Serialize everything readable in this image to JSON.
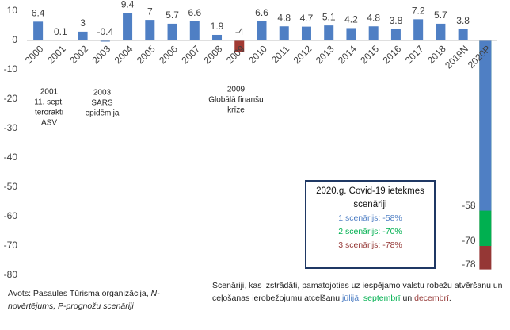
{
  "chart_data": {
    "type": "bar",
    "categories": [
      "2000",
      "2001",
      "2002",
      "2003",
      "2004",
      "2005",
      "2006",
      "2007",
      "2008",
      "2009",
      "2010",
      "2011",
      "2012",
      "2013",
      "2014",
      "2015",
      "2016",
      "2017",
      "2018",
      "2019N",
      "2020P"
    ],
    "series": [
      {
        "values": [
          6.4,
          0.1,
          3,
          -0.4,
          9.4,
          7,
          5.7,
          6.6,
          1.9,
          -4,
          6.6,
          4.8,
          4.7,
          5.1,
          4.2,
          4.8,
          3.8,
          7.2,
          5.7,
          3.8,
          null
        ],
        "colors": [
          "#4f7fc4",
          "#4f7fc4",
          "#4f7fc4",
          "#4f7fc4",
          "#4f7fc4",
          "#4f7fc4",
          "#4f7fc4",
          "#4f7fc4",
          "#4f7fc4",
          "#a23a33",
          "#4f7fc4",
          "#4f7fc4",
          "#4f7fc4",
          "#4f7fc4",
          "#4f7fc4",
          "#4f7fc4",
          "#4f7fc4",
          "#4f7fc4",
          "#4f7fc4",
          "#4f7fc4",
          "#4f7fc4"
        ]
      },
      {
        "name": "3.scenārijs: -78%",
        "color": "#953735",
        "values": [
          null,
          null,
          null,
          null,
          null,
          null,
          null,
          null,
          null,
          null,
          null,
          null,
          null,
          null,
          null,
          null,
          null,
          null,
          null,
          null,
          -78
        ]
      },
      {
        "name": "2.scenārijs: -70%",
        "color": "#00b050",
        "values": [
          null,
          null,
          null,
          null,
          null,
          null,
          null,
          null,
          null,
          null,
          null,
          null,
          null,
          null,
          null,
          null,
          null,
          null,
          null,
          null,
          -70
        ]
      },
      {
        "name": "1.scenārijs: -58%",
        "color": "#4f7fc4",
        "values": [
          null,
          null,
          null,
          null,
          null,
          null,
          null,
          null,
          null,
          null,
          null,
          null,
          null,
          null,
          null,
          null,
          null,
          null,
          null,
          null,
          -58
        ]
      }
    ],
    "legend_title": "2020.g. Covid-19 ietekmes scenāriji",
    "ylim": [
      -80,
      10
    ],
    "yticks": [
      -80,
      -70,
      -60,
      -50,
      -40,
      -30,
      -20,
      -10,
      0,
      10
    ],
    "grid": false,
    "annotations": [
      [
        "2001",
        "11. sept.",
        "terorakti",
        "ASV"
      ],
      [
        "2003",
        "SARS",
        "epidēmija"
      ],
      [
        "2009",
        "Globālā finanšu",
        "krīze"
      ]
    ]
  },
  "source": {
    "text": "Avots: Pasaules Tūrisma organizācija,",
    "italic": "N-novērtējums, P-prognožu scenāriji"
  },
  "note": [
    {
      "text": "Scenāriji, kas izstrādāti, pamatojoties uz iespējamo valstu robežu atvēršanu un ceļošanas ierobežojumu atcelšanu"
    },
    {
      "text": "jūlijā",
      "color": "#4f7fc4"
    },
    {
      "text": ","
    },
    {
      "text": "septembrī",
      "color": "#00b050"
    },
    {
      "text": "un"
    },
    {
      "text": "decembrī",
      "color": "#953735"
    },
    {
      "text": "."
    }
  ]
}
